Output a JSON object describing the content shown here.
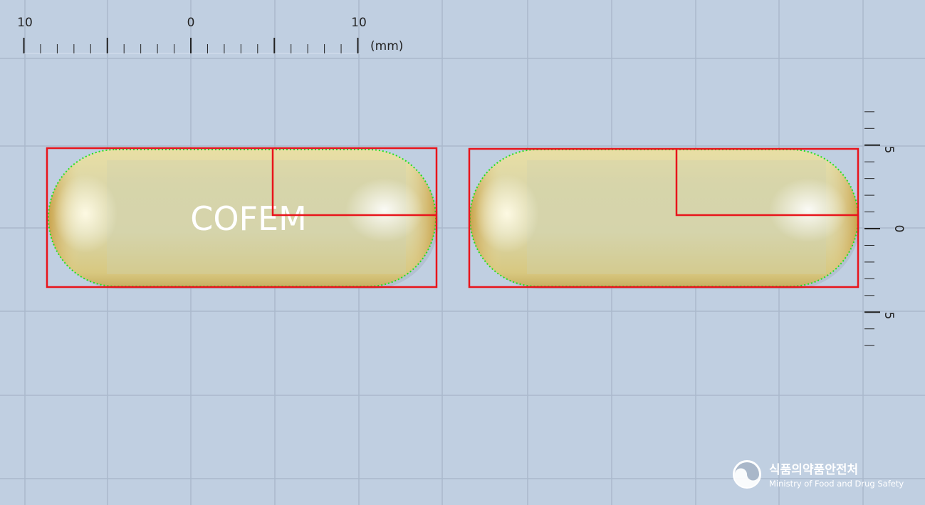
{
  "ruler_top": {
    "labels": [
      "10",
      "0",
      "10"
    ],
    "unit": "(mm)"
  },
  "ruler_right": {
    "labels": [
      "5",
      "0",
      "5"
    ]
  },
  "capsules": [
    {
      "imprint": "COFEM"
    },
    {
      "imprint": ""
    }
  ],
  "watermark": {
    "org_korean": "식품의약품안전처",
    "org_english": "Ministry of Food and Drug Safety"
  },
  "colors": {
    "background": "#c0cfe1",
    "grid": "#aab9cc",
    "bounding_box": "#e8141b",
    "contour": "#22e022",
    "capsule_fill": "#ddd6a6"
  }
}
